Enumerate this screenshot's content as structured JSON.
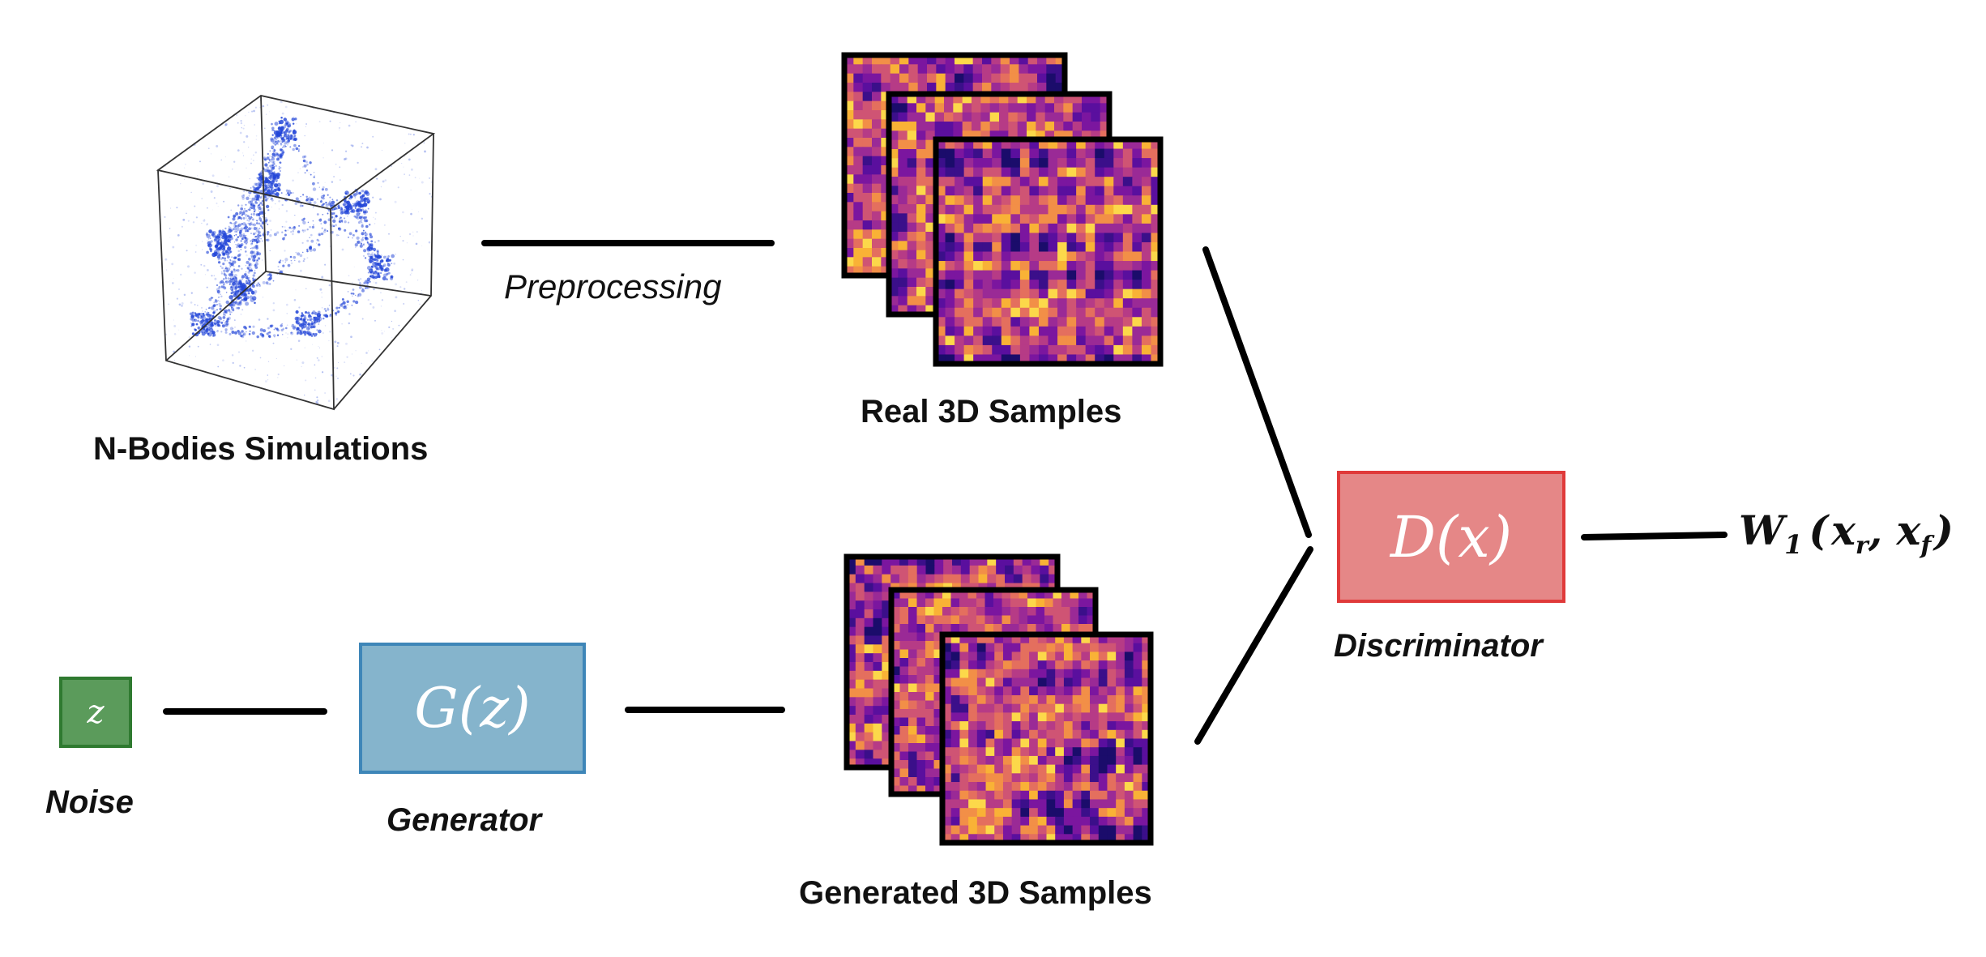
{
  "labels": {
    "nbody": "N-Bodies Simulations",
    "preprocessing": "Preprocessing",
    "real_samples": "Real 3D Samples",
    "generated_samples": "Generated 3D Samples",
    "noise": "Noise",
    "generator": "Generator",
    "discriminator": "Discriminator"
  },
  "math": {
    "z": "z",
    "generator_fn": "G(z)",
    "discriminator_fn": "D(x)",
    "wasserstein_W": "W",
    "wasserstein_sub": "1",
    "wasserstein_open": "(",
    "x_r_base": "x",
    "x_r_sub": "r",
    "comma": ", ",
    "x_f_base": "x",
    "x_f_sub": "f",
    "wasserstein_close": ")"
  },
  "colors": {
    "noise_fill": "#5b9b5b",
    "noise_border": "#2f7a30",
    "generator_fill": "#85b4cc",
    "generator_border": "#3e86b8",
    "discriminator_fill": "#e58787",
    "discriminator_border": "#e03a3a",
    "nbody_points": "#2346d8",
    "arrow": "#000000"
  },
  "icons": {
    "cube": "simulation-cube-icon",
    "heatmap": "density-slice-icon"
  }
}
